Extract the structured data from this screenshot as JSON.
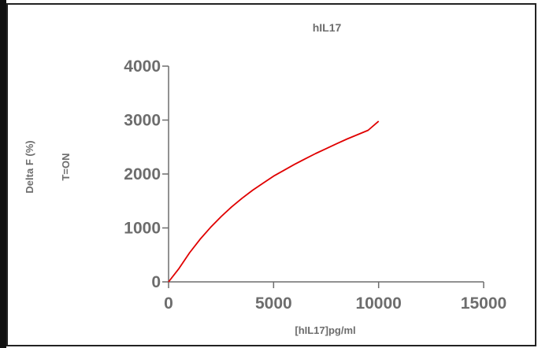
{
  "chart_data": {
    "type": "line",
    "title": "hIL17",
    "xlabel": "[hIL17]pg/ml",
    "ylabel": "Delta F (%)",
    "annotation": "T=ON",
    "xlim": [
      0,
      15000
    ],
    "ylim": [
      0,
      4000
    ],
    "xticks": [
      0,
      5000,
      10000,
      15000
    ],
    "yticks": [
      0,
      1000,
      2000,
      3000,
      4000
    ],
    "xtick_labels": [
      "0",
      "5000",
      "10000",
      "15000"
    ],
    "ytick_labels": [
      "0",
      "1000",
      "2000",
      "3000",
      "4000"
    ],
    "grid": false,
    "series": [
      {
        "color": "#e00000",
        "x": [
          0,
          500,
          1000,
          1500,
          2000,
          2500,
          3000,
          3500,
          4000,
          4500,
          5000,
          5500,
          6000,
          6500,
          7000,
          7500,
          8000,
          8500,
          9000,
          9500,
          10000
        ],
        "y": [
          0,
          250,
          540,
          790,
          1010,
          1210,
          1390,
          1550,
          1700,
          1830,
          1960,
          2070,
          2180,
          2280,
          2380,
          2470,
          2560,
          2650,
          2730,
          2810,
          2980
        ]
      }
    ]
  }
}
